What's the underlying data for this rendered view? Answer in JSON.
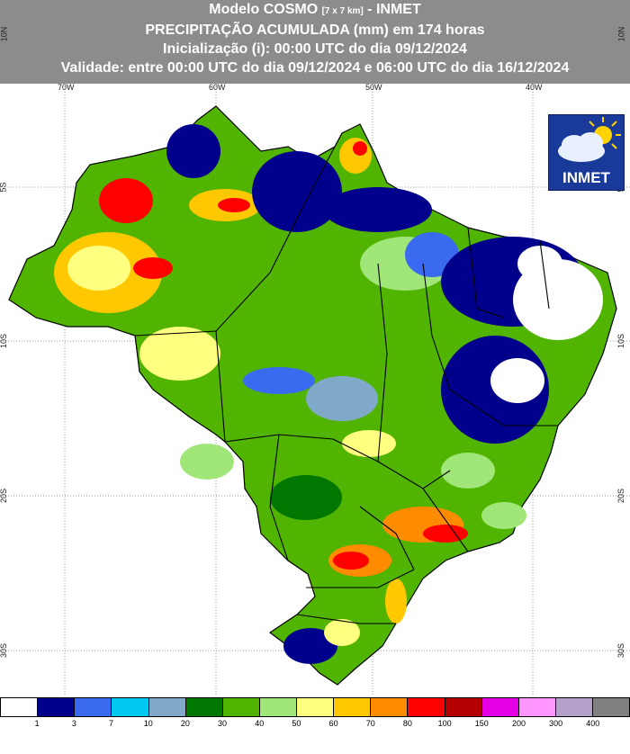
{
  "header": {
    "line1_a": "Modelo COSMO ",
    "line1_small": "[7 x 7 km]",
    "line1_b": " - INMET",
    "line2": "PRECIPITAÇÃO ACUMULADA (mm) em 174 horas",
    "line3": "Inicialização (i): 00:00 UTC do dia 09/12/2024",
    "line4": "Validade: entre 00:00 UTC do dia 09/12/2024 e 06:00 UTC do dia 16/12/2024"
  },
  "coords": {
    "top": [
      "70W",
      "60W",
      "50W",
      "40W"
    ],
    "left": [
      "10N",
      "5S",
      "10S",
      "20S",
      "30S"
    ],
    "right": [
      "10N",
      "5S",
      "10S",
      "20S",
      "30S"
    ]
  },
  "logo": {
    "text": "INMET",
    "icon": "cloud-sun-icon"
  },
  "legend": {
    "labels": [
      "1",
      "3",
      "7",
      "10",
      "20",
      "30",
      "40",
      "50",
      "60",
      "70",
      "80",
      "100",
      "150",
      "200",
      "300",
      "400"
    ],
    "colors": [
      "#ffffff",
      "#00008c",
      "#3a6af0",
      "#00c8f0",
      "#80a8c8",
      "#007800",
      "#50b400",
      "#a0e678",
      "#ffff80",
      "#ffc800",
      "#ff8c00",
      "#ff0000",
      "#b40000",
      "#e600e6",
      "#ff96ff",
      "#b4a0c8",
      "#808080"
    ]
  }
}
